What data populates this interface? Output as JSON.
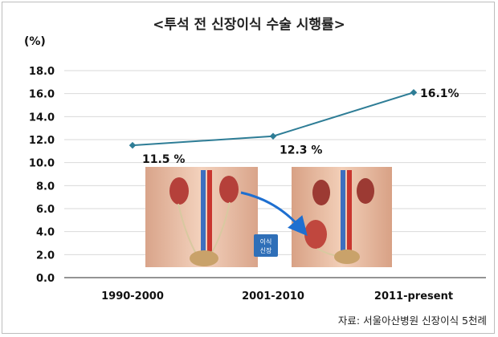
{
  "chart_data": {
    "type": "line",
    "title": "<투석 전 신장이식 수술 시행률>",
    "unit_label": "(%)",
    "categories": [
      "1990-2000",
      "2001-2010",
      "2011-present"
    ],
    "series": [
      {
        "values": [
          11.5,
          12.3,
          16.1
        ],
        "color": "#2e7d96"
      }
    ],
    "data_labels": [
      "11.5 %",
      "12.3 %",
      "16.1%"
    ],
    "y_ticks": [
      "0.0",
      "2.0",
      "4.0",
      "6.0",
      "8.0",
      "10.0",
      "12.0",
      "14.0",
      "16.0",
      "18.0"
    ],
    "ylim": [
      0,
      18
    ],
    "grid": true,
    "xlabel": "",
    "ylabel": ""
  },
  "illustration": {
    "description_icon": "kidney-transplant-illustration",
    "callout_label_line1": "이식",
    "callout_label_line2": "신장"
  },
  "source": "자료: 서울아산병원 신장이식 5천례"
}
